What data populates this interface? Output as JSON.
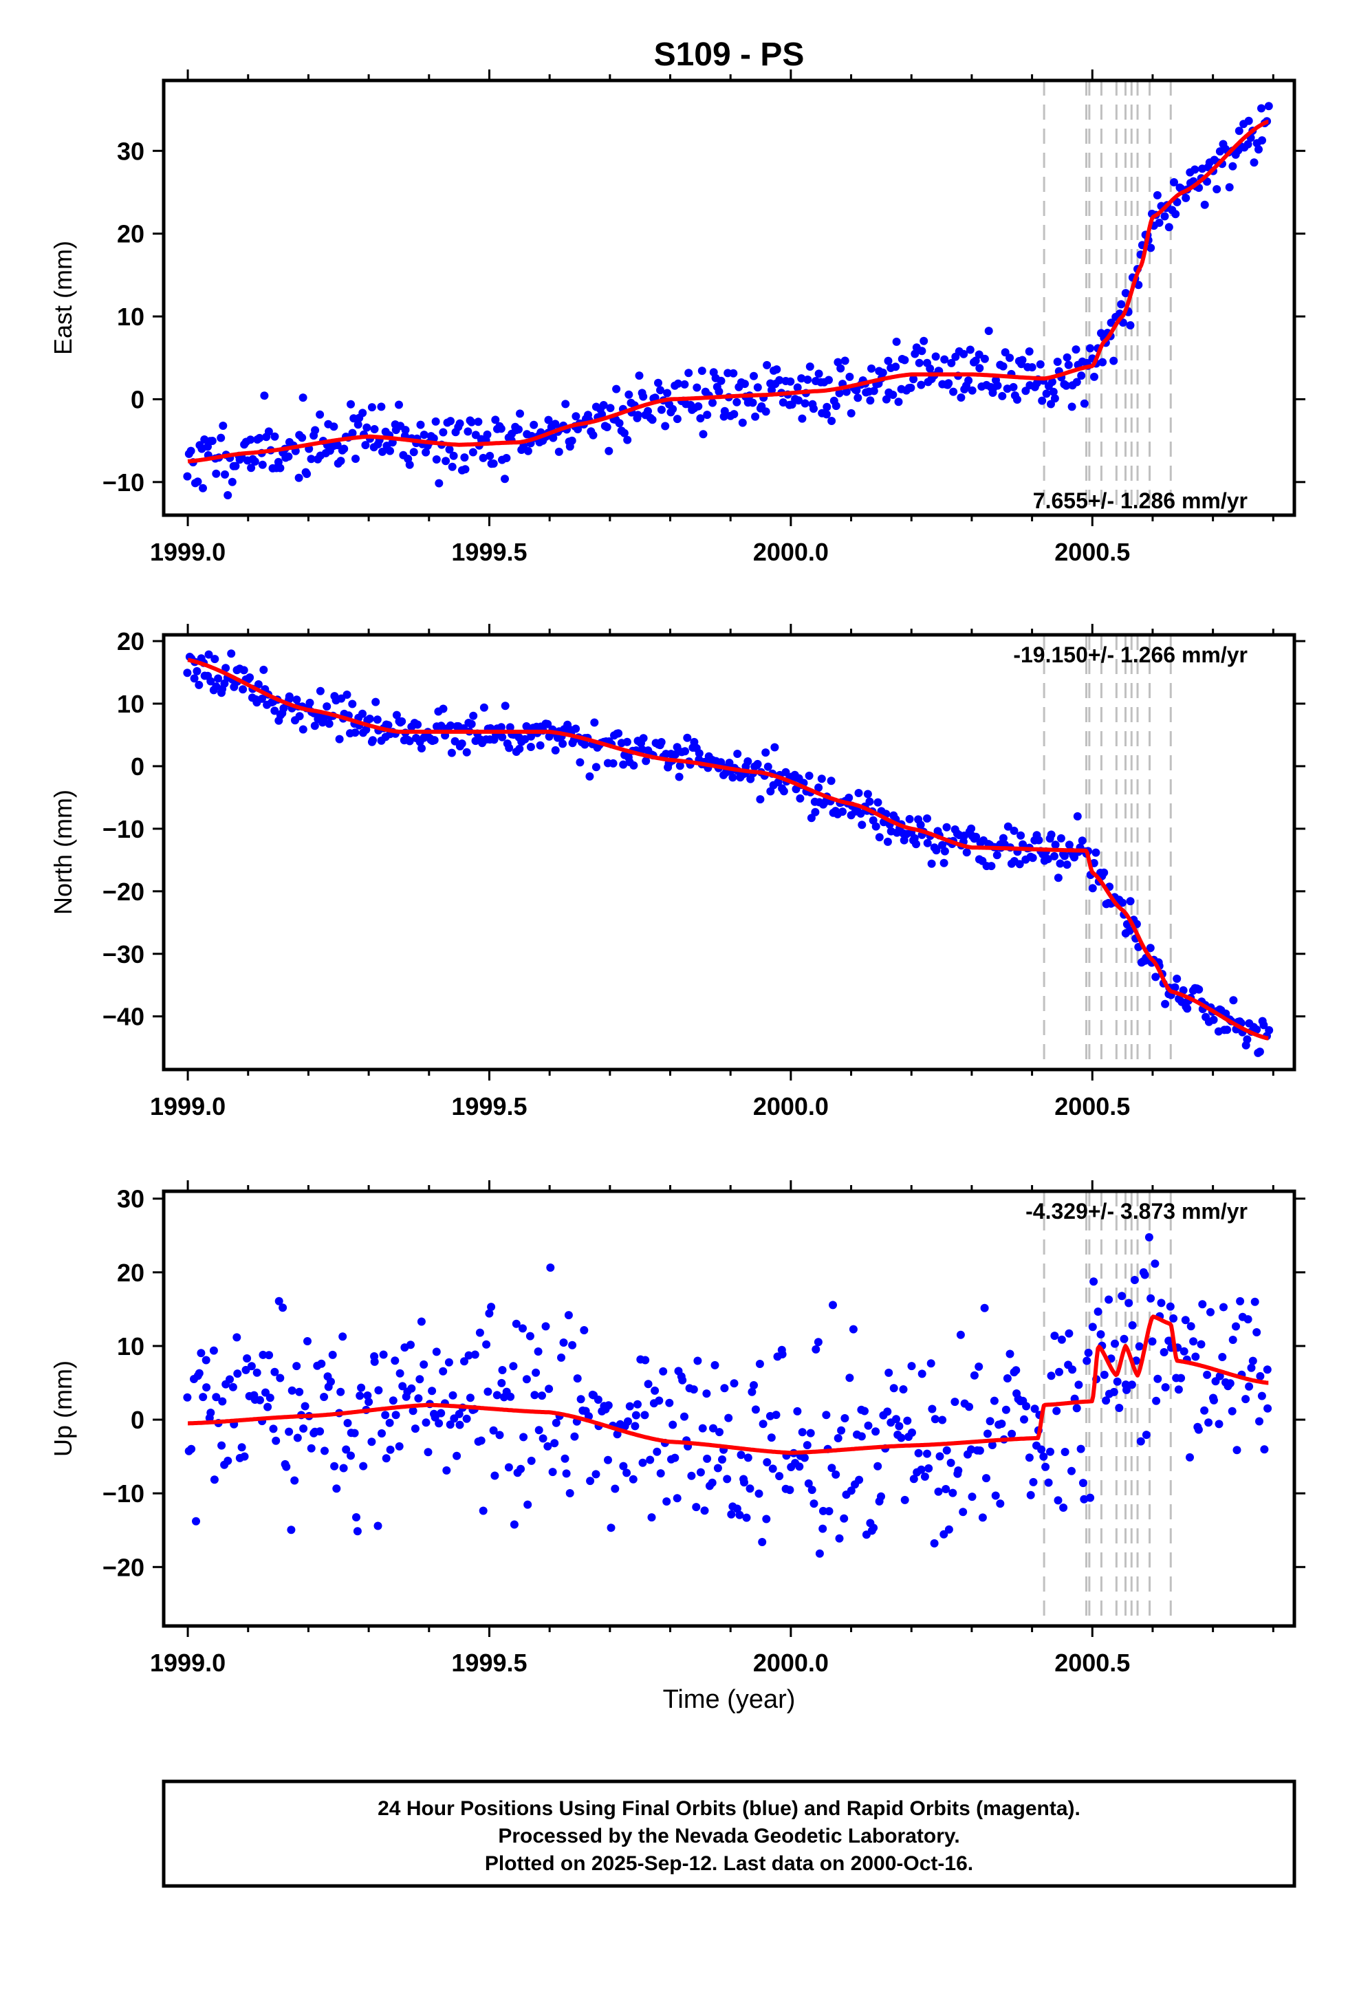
{
  "title": "S109 - PS",
  "x_label": "Time (year)",
  "caption": {
    "line1": "24 Hour Positions Using Final Orbits (blue) and Rapid Orbits (magenta).",
    "line2": "Processed by the Nevada Geodetic Laboratory.",
    "line3": "Plotted on 2025-Sep-12. Last data on 2000-Oct-16."
  },
  "colors": {
    "points": "#0000ff",
    "model": "#ff0000",
    "steps": "#c0c0c0",
    "frame": "#000000"
  },
  "chart_data": [
    {
      "type": "scatter",
      "name": "East",
      "ylabel": "East (mm)",
      "rate_text": "7.655+/- 1.286 mm/yr",
      "xlim": [
        1998.96,
        2000.835
      ],
      "ylim": [
        -14,
        38.5
      ],
      "yticks": [
        -10,
        0,
        10,
        20,
        30
      ],
      "yticklabels": [
        "−10",
        "0",
        "10",
        "20",
        "30"
      ],
      "xticks": [
        1999.0,
        1999.5,
        2000.0,
        2000.5
      ],
      "xticklabels": [
        "1999.0",
        "1999.5",
        "2000.0",
        "2000.5"
      ],
      "step_epochs": [
        2000.42,
        2000.49,
        2000.495,
        2000.515,
        2000.54,
        2000.555,
        2000.565,
        2000.575,
        2000.595,
        2000.63
      ],
      "model_knots": [
        [
          1999.0,
          -7.5
        ],
        [
          1999.1,
          -6.5
        ],
        [
          1999.3,
          -4.5
        ],
        [
          1999.45,
          -5.5
        ],
        [
          1999.55,
          -5.2
        ],
        [
          1999.65,
          -3
        ],
        [
          1999.8,
          0
        ],
        [
          1999.95,
          0.5
        ],
        [
          2000.05,
          1
        ],
        [
          2000.2,
          3
        ],
        [
          2000.3,
          3
        ],
        [
          2000.42,
          2.5
        ],
        [
          2000.5,
          4
        ],
        [
          2000.52,
          7
        ],
        [
          2000.55,
          10
        ],
        [
          2000.58,
          16
        ],
        [
          2000.6,
          22
        ],
        [
          2000.65,
          25
        ],
        [
          2000.79,
          33.5
        ]
      ],
      "model_steps": [
        [
          2000.42,
          1.2
        ],
        [
          2000.49,
          3.0
        ],
        [
          2000.6,
          3.0
        ]
      ],
      "noise_sd": 1.9,
      "n_points": 560,
      "seed": 11
    },
    {
      "type": "scatter",
      "name": "North",
      "ylabel": "North (mm)",
      "rate_text": "-19.150+/- 1.266 mm/yr",
      "xlim": [
        1998.96,
        2000.835
      ],
      "ylim": [
        -48.5,
        21
      ],
      "yticks": [
        -40,
        -30,
        -20,
        -10,
        0,
        10,
        20
      ],
      "yticklabels": [
        "−40",
        "−30",
        "−20",
        "−10",
        "0",
        "10",
        "20"
      ],
      "xticks": [
        1999.0,
        1999.5,
        2000.0,
        2000.5
      ],
      "xticklabels": [
        "1999.0",
        "1999.5",
        "2000.0",
        "2000.5"
      ],
      "step_epochs": [
        2000.42,
        2000.49,
        2000.495,
        2000.515,
        2000.54,
        2000.555,
        2000.565,
        2000.575,
        2000.595,
        2000.63
      ],
      "model_knots": [
        [
          1999.0,
          17
        ],
        [
          1999.2,
          9
        ],
        [
          1999.35,
          5.5
        ],
        [
          1999.6,
          5.5
        ],
        [
          1999.8,
          1
        ],
        [
          1999.95,
          -1
        ],
        [
          2000.1,
          -6
        ],
        [
          2000.2,
          -10
        ],
        [
          2000.3,
          -13
        ],
        [
          2000.49,
          -13.5
        ],
        [
          2000.5,
          -17
        ],
        [
          2000.55,
          -23
        ],
        [
          2000.6,
          -31
        ],
        [
          2000.63,
          -36
        ],
        [
          2000.79,
          -43.5
        ]
      ],
      "model_steps": [
        [
          2000.49,
          -1.5
        ],
        [
          2000.57,
          -2.0
        ],
        [
          2000.63,
          -4.5
        ]
      ],
      "noise_sd": 1.6,
      "n_points": 560,
      "seed": 23
    },
    {
      "type": "scatter",
      "name": "Up",
      "ylabel": "Up (mm)",
      "rate_text": "-4.329+/- 3.873 mm/yr",
      "xlim": [
        1998.96,
        2000.835
      ],
      "ylim": [
        -28,
        31
      ],
      "yticks": [
        -20,
        -10,
        0,
        10,
        20,
        30
      ],
      "yticklabels": [
        "−20",
        "−10",
        "0",
        "10",
        "20",
        "30"
      ],
      "xticks": [
        1999.0,
        1999.5,
        2000.0,
        2000.5
      ],
      "xticklabels": [
        "1999.0",
        "1999.5",
        "2000.0",
        "2000.5"
      ],
      "step_epochs": [
        2000.42,
        2000.49,
        2000.495,
        2000.515,
        2000.54,
        2000.555,
        2000.565,
        2000.575,
        2000.595,
        2000.63
      ],
      "model_knots": [
        [
          1999.0,
          -0.5
        ],
        [
          1999.2,
          0.5
        ],
        [
          1999.4,
          2
        ],
        [
          1999.6,
          1
        ],
        [
          1999.8,
          -3
        ],
        [
          2000.0,
          -4.5
        ],
        [
          2000.2,
          -3.5
        ],
        [
          2000.41,
          -2.5
        ],
        [
          2000.42,
          2
        ],
        [
          2000.5,
          2.5
        ],
        [
          2000.51,
          10
        ],
        [
          2000.54,
          6
        ],
        [
          2000.555,
          10
        ],
        [
          2000.575,
          6
        ],
        [
          2000.6,
          14
        ],
        [
          2000.63,
          13
        ],
        [
          2000.64,
          8
        ],
        [
          2000.79,
          5
        ]
      ],
      "model_steps": [],
      "noise_sd": 6.5,
      "n_points": 560,
      "seed": 37
    }
  ]
}
